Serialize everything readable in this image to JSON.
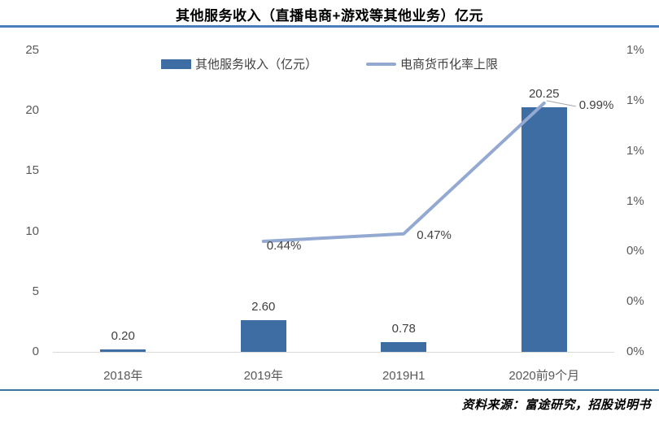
{
  "title": "其他服务收入（直播电商+游戏等其他业务）亿元",
  "legend": [
    {
      "label": "其他服务收入（亿元）",
      "marker": "bar-swatch",
      "color": "#3E6DA4"
    },
    {
      "label": "电商货币化率上限",
      "marker": "line-swatch",
      "color": "#93A9D2"
    }
  ],
  "chart_data": {
    "type": "combo",
    "categories": [
      "2018年",
      "2019年",
      "2019H1",
      "2020前9个月"
    ],
    "series": [
      {
        "name": "其他服务收入（亿元）",
        "type": "bar",
        "axis": "left",
        "color": "#3E6DA4",
        "values": [
          0.2,
          2.6,
          0.78,
          20.25
        ],
        "labels": [
          "0.20",
          "2.60",
          "0.78",
          "20.25"
        ]
      },
      {
        "name": "电商货币化率上限",
        "type": "line",
        "axis": "right",
        "color": "#93A9D2",
        "values": [
          null,
          0.44,
          0.47,
          0.99
        ],
        "labels": [
          null,
          "0.44%",
          "0.47%",
          "0.99%"
        ]
      }
    ],
    "left_axis": {
      "min": 0,
      "max": 25,
      "tick_labels_bottom_up": [
        "0",
        "5",
        "10",
        "15",
        "20",
        "25"
      ]
    },
    "right_axis": {
      "min": 0,
      "max": 1.2,
      "tick_labels_bottom_up": [
        "0%",
        "0%",
        "0%",
        "1%",
        "1%",
        "1%",
        "1%"
      ]
    },
    "grid": false,
    "legend_position": "top"
  },
  "colors": {
    "bar": "#3E6DA4",
    "line": "#93A9D2",
    "title_rule": "#4A7EBB",
    "footer_rule": "#41719C",
    "baseline": "#d9d9d9",
    "leader_line": "#a6a6a6",
    "axis_text": "#595959"
  },
  "source": "资料来源：富途研究，招股说明书"
}
